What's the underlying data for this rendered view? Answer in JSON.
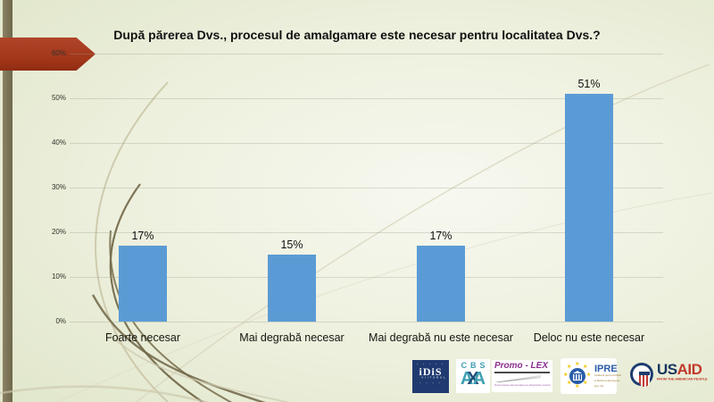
{
  "slide": {
    "title": "După părerea Dvs., procesul de amalgamare este necesar pentru localitatea Dvs.?"
  },
  "chart_data": {
    "type": "bar",
    "title": "După părerea Dvs., procesul de amalgamare este necesar pentru localitatea Dvs.?",
    "categories": [
      "Foarte necesar",
      "Mai degrabă necesar",
      "Mai degrabă nu este necesar",
      "Deloc nu este necesar"
    ],
    "values": [
      17,
      15,
      17,
      51
    ],
    "value_labels": [
      "17%",
      "15%",
      "17%",
      "51%"
    ],
    "xlabel": "",
    "ylabel": "",
    "ylim": [
      0,
      60
    ],
    "y_ticks": [
      "60%",
      "50%",
      "40%",
      "30%",
      "20%",
      "10%",
      "0%"
    ],
    "grid": true,
    "legend": "none",
    "bar_color": "#5b9bd5"
  },
  "logos": {
    "idis": {
      "dots_top": "· · · · ·",
      "text": "iDiS",
      "subtext": "V I I T O R U L",
      "dots_bottom": "· · · ·"
    },
    "cbs_axa": {
      "top": "CBS",
      "monogram": [
        "A",
        "X",
        "A"
      ]
    },
    "promo_lex": {
      "name": "Promo - LEX",
      "tagline": "Promovarea democrației și a drepturilor omului"
    },
    "ipre": {
      "star": "★",
      "name": "IPRE",
      "subtitle_line1": "Institutul pentru Politici",
      "subtitle_line2": "și Reforme Europene",
      "subtitle_line3": "ipre.md"
    },
    "usaid": {
      "us": "US",
      "aid": "AID",
      "tagline": "FROM THE AMERICAN PEOPLE"
    }
  },
  "colors": {
    "bar": "#5b9bd5",
    "arrow_red": "#a03518",
    "left_bar_olive": "#7b7456",
    "background_light": "#f7f8f0",
    "background_dark": "#dde4c6"
  }
}
